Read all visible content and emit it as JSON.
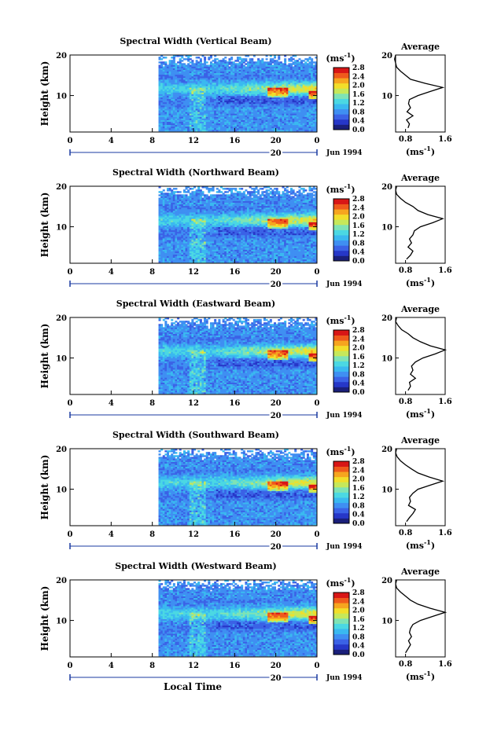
{
  "figure": {
    "xlabel": "Local Time",
    "date_label": "Jun 1994",
    "day_label": "20",
    "cbar_unit_base": "(ms",
    "cbar_unit_exp": "-1",
    "cbar_unit_close": ")",
    "avg_title": "Average",
    "avg_xlabel_base": "(ms",
    "avg_xlabel_exp": "-1",
    "avg_xlabel_close": ")",
    "colors": {
      "colormap": [
        "#1a1f7a",
        "#2637c8",
        "#3b62e6",
        "#3f8ff2",
        "#3ab9f0",
        "#4bd8e3",
        "#7fe3b5",
        "#c6e85a",
        "#f2de2a",
        "#f6a51f",
        "#ef5a1c",
        "#d81616"
      ],
      "background": "#ffffff",
      "axis": "#000000",
      "date_axis": "#1a3aa0"
    }
  },
  "chart_data": [
    {
      "type": "heatmap",
      "title": "Spectral Width (Vertical Beam)",
      "ylabel": "Height (km)",
      "xlim": [
        0,
        24
      ],
      "ylim": [
        1,
        20
      ],
      "xticks": [
        "0",
        "4",
        "8",
        "12",
        "16",
        "20",
        "0"
      ],
      "yticks": [
        "10",
        "20"
      ],
      "colorbar": {
        "ticks": [
          "0.0",
          "0.4",
          "0.8",
          "1.2",
          "1.6",
          "2.0",
          "2.4",
          "2.8"
        ]
      },
      "average": {
        "title": "Average",
        "xticks": [
          "0.8",
          "1.6"
        ],
        "yticks": [
          "10",
          "20"
        ],
        "profile": [
          [
            0.85,
            2
          ],
          [
            0.88,
            3
          ],
          [
            0.82,
            4
          ],
          [
            0.95,
            5
          ],
          [
            0.83,
            6
          ],
          [
            0.9,
            7
          ],
          [
            0.86,
            8
          ],
          [
            0.88,
            9
          ],
          [
            1.05,
            10
          ],
          [
            1.3,
            11
          ],
          [
            1.55,
            12
          ],
          [
            1.2,
            13
          ],
          [
            0.9,
            14
          ],
          [
            0.8,
            15
          ],
          [
            0.7,
            16
          ],
          [
            0.62,
            17
          ],
          [
            0.6,
            18
          ],
          [
            0.58,
            19
          ],
          [
            0.6,
            20
          ]
        ]
      }
    },
    {
      "type": "heatmap",
      "title": "Spectral Width (Northward Beam)",
      "ylabel": "Height (km)",
      "xlim": [
        0,
        24
      ],
      "ylim": [
        1,
        20
      ],
      "xticks": [
        "0",
        "4",
        "8",
        "12",
        "16",
        "20",
        "0"
      ],
      "yticks": [
        "10",
        "20"
      ],
      "colorbar": {
        "ticks": [
          "0.0",
          "0.4",
          "0.8",
          "1.2",
          "1.6",
          "2.0",
          "2.4",
          "2.8"
        ]
      },
      "average": {
        "title": "Average",
        "xticks": [
          "0.8",
          "1.6"
        ],
        "yticks": [
          "10",
          "20"
        ],
        "profile": [
          [
            0.82,
            2
          ],
          [
            0.9,
            3
          ],
          [
            0.95,
            4
          ],
          [
            0.85,
            5
          ],
          [
            0.92,
            6
          ],
          [
            0.88,
            7
          ],
          [
            0.95,
            8
          ],
          [
            0.98,
            9
          ],
          [
            1.1,
            10
          ],
          [
            1.35,
            11
          ],
          [
            1.55,
            12
          ],
          [
            1.25,
            13
          ],
          [
            1.05,
            14
          ],
          [
            0.95,
            15
          ],
          [
            0.8,
            16
          ],
          [
            0.7,
            17
          ],
          [
            0.62,
            18
          ],
          [
            0.6,
            19
          ],
          [
            0.62,
            20
          ]
        ]
      }
    },
    {
      "type": "heatmap",
      "title": "Spectral Width (Eastward Beam)",
      "ylabel": "Height (km)",
      "xlim": [
        0,
        24
      ],
      "ylim": [
        1,
        20
      ],
      "xticks": [
        "0",
        "4",
        "8",
        "12",
        "16",
        "20",
        "0"
      ],
      "yticks": [
        "10",
        "20"
      ],
      "colorbar": {
        "ticks": [
          "0.0",
          "0.4",
          "0.8",
          "1.2",
          "1.6",
          "2.0",
          "2.4",
          "2.8"
        ]
      },
      "average": {
        "title": "Average",
        "xticks": [
          "0.8",
          "1.6"
        ],
        "yticks": [
          "10",
          "20"
        ],
        "profile": [
          [
            0.85,
            2
          ],
          [
            0.9,
            3
          ],
          [
            0.88,
            4
          ],
          [
            1.0,
            5
          ],
          [
            0.9,
            6
          ],
          [
            0.95,
            7
          ],
          [
            0.92,
            8
          ],
          [
            1.0,
            9
          ],
          [
            1.15,
            10
          ],
          [
            1.4,
            11
          ],
          [
            1.6,
            12
          ],
          [
            1.3,
            13
          ],
          [
            1.1,
            14
          ],
          [
            0.95,
            15
          ],
          [
            0.85,
            16
          ],
          [
            0.72,
            17
          ],
          [
            0.65,
            18
          ],
          [
            0.6,
            19
          ],
          [
            0.62,
            20
          ]
        ]
      }
    },
    {
      "type": "heatmap",
      "title": "Spectral Width (Southward Beam)",
      "ylabel": "Height (km)",
      "xlim": [
        0,
        24
      ],
      "ylim": [
        1,
        20
      ],
      "xticks": [
        "0",
        "4",
        "8",
        "12",
        "16",
        "20",
        "0"
      ],
      "yticks": [
        "10",
        "20"
      ],
      "colorbar": {
        "ticks": [
          "0.0",
          "0.4",
          "0.8",
          "1.2",
          "1.6",
          "2.0",
          "2.4",
          "2.8"
        ]
      },
      "average": {
        "title": "Average",
        "xticks": [
          "0.8",
          "1.6"
        ],
        "yticks": [
          "10",
          "20"
        ],
        "profile": [
          [
            0.82,
            2
          ],
          [
            0.88,
            3
          ],
          [
            0.95,
            4
          ],
          [
            1.0,
            5
          ],
          [
            0.86,
            6
          ],
          [
            0.9,
            7
          ],
          [
            0.88,
            8
          ],
          [
            0.95,
            9
          ],
          [
            1.05,
            10
          ],
          [
            1.3,
            11
          ],
          [
            1.55,
            12
          ],
          [
            1.28,
            13
          ],
          [
            1.05,
            14
          ],
          [
            0.92,
            15
          ],
          [
            0.8,
            16
          ],
          [
            0.7,
            17
          ],
          [
            0.63,
            18
          ],
          [
            0.6,
            19
          ],
          [
            0.62,
            20
          ]
        ]
      }
    },
    {
      "type": "heatmap",
      "title": "Spectral Width (Westward Beam)",
      "ylabel": "Height (km)",
      "xlim": [
        0,
        24
      ],
      "ylim": [
        1,
        20
      ],
      "xticks": [
        "0",
        "4",
        "8",
        "12",
        "16",
        "20",
        "0"
      ],
      "yticks": [
        "10",
        "20"
      ],
      "colorbar": {
        "ticks": [
          "0.0",
          "0.4",
          "0.8",
          "1.2",
          "1.6",
          "2.0",
          "2.4",
          "2.8"
        ]
      },
      "average": {
        "title": "Average",
        "xticks": [
          "0.8",
          "1.6"
        ],
        "yticks": [
          "10",
          "20"
        ],
        "profile": [
          [
            0.8,
            2
          ],
          [
            0.85,
            3
          ],
          [
            0.9,
            4
          ],
          [
            0.86,
            5
          ],
          [
            0.92,
            6
          ],
          [
            0.88,
            7
          ],
          [
            0.9,
            8
          ],
          [
            0.95,
            9
          ],
          [
            1.1,
            10
          ],
          [
            1.35,
            11
          ],
          [
            1.6,
            12
          ],
          [
            1.3,
            13
          ],
          [
            1.05,
            14
          ],
          [
            0.9,
            15
          ],
          [
            0.8,
            16
          ],
          [
            0.7,
            17
          ],
          [
            0.62,
            18
          ],
          [
            0.6,
            19
          ],
          [
            0.62,
            20
          ]
        ]
      }
    }
  ]
}
